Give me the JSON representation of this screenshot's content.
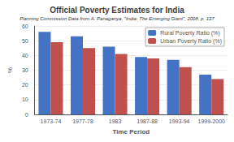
{
  "chart_data": {
    "type": "bar",
    "title": "Official Poverty Estimates for India",
    "subtitle": "Planning Commission Data from A. Panagariya, \"India: The Emerging Giant\", 2008, p. 137",
    "xlabel": "Time Period",
    "ylabel": "%",
    "categories": [
      "1973-74",
      "1977-78",
      "1983",
      "1987-88",
      "1993-94",
      "1999-2000"
    ],
    "series": [
      {
        "name": "Rural Poverty Ratio (%)",
        "color": "#4472C4",
        "values": [
          56,
          53,
          46,
          39,
          37,
          27
        ]
      },
      {
        "name": "Urban Poverty Ratio (%)",
        "color": "#C0504D",
        "values": [
          49,
          45,
          41,
          38,
          32,
          24
        ]
      }
    ],
    "ylim": [
      0,
      60
    ],
    "yticks": [
      0,
      10,
      20,
      30,
      40,
      50,
      60
    ],
    "grid": true,
    "legend": "upper right"
  }
}
